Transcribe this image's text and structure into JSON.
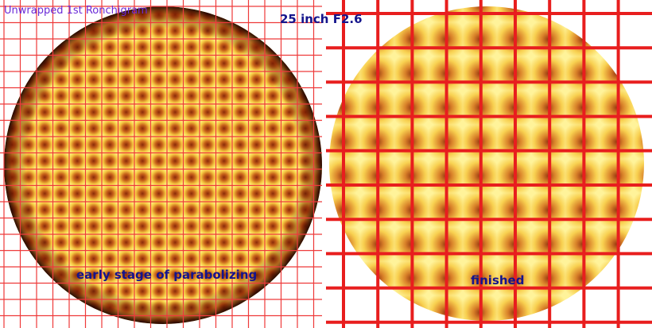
{
  "images": [
    {
      "caption": "Unwrapped 1st Ronchigram",
      "label": "early stage of parabolizing"
    },
    {
      "label": "finished"
    }
  ],
  "title": "25 inch F2.6"
}
